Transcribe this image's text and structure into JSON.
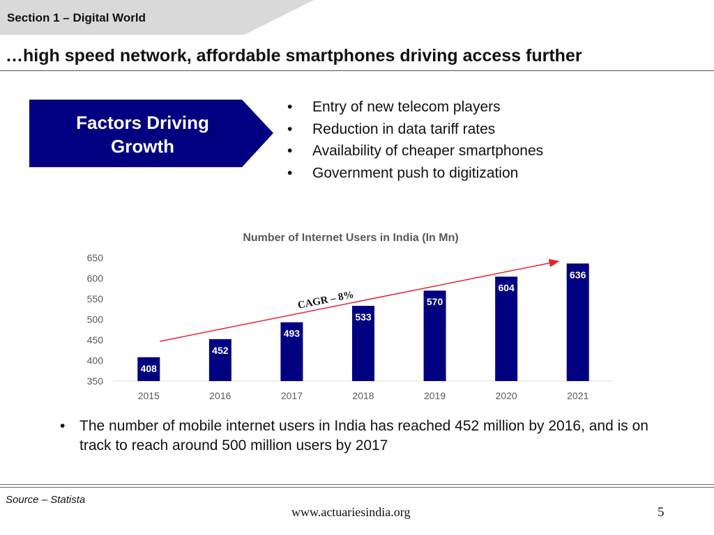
{
  "header": {
    "section_label": "Section 1 – Digital World",
    "title": "…high speed network, affordable smartphones driving access further"
  },
  "factors_box": {
    "label_line1": "Factors Driving",
    "label_line2": "Growth",
    "color": "#000080"
  },
  "bullets": [
    "Entry of new telecom players",
    "Reduction in data tariff rates",
    "Availability of cheaper smartphones",
    "Government push to digitization"
  ],
  "chart_data": {
    "type": "bar",
    "title": "Number of Internet Users in India (In Mn)",
    "categories": [
      "2015",
      "2016",
      "2017",
      "2018",
      "2019",
      "2020",
      "2021"
    ],
    "values": [
      408,
      452,
      493,
      533,
      570,
      604,
      636
    ],
    "ylim": [
      350,
      650
    ],
    "yticks": [
      350,
      400,
      450,
      500,
      550,
      600,
      650
    ],
    "bar_color": "#000080",
    "trend_color": "#e8222c",
    "annotation": "CAGR – 8%",
    "xlabel": "",
    "ylabel": ""
  },
  "bottom_note": "The number of mobile internet users in India has reached 452 million by 2016, and is on track to reach around 500 million users by 2017",
  "footer": {
    "source": "Source – Statista",
    "website": "www.actuariesindia.org",
    "page_number": "5"
  }
}
